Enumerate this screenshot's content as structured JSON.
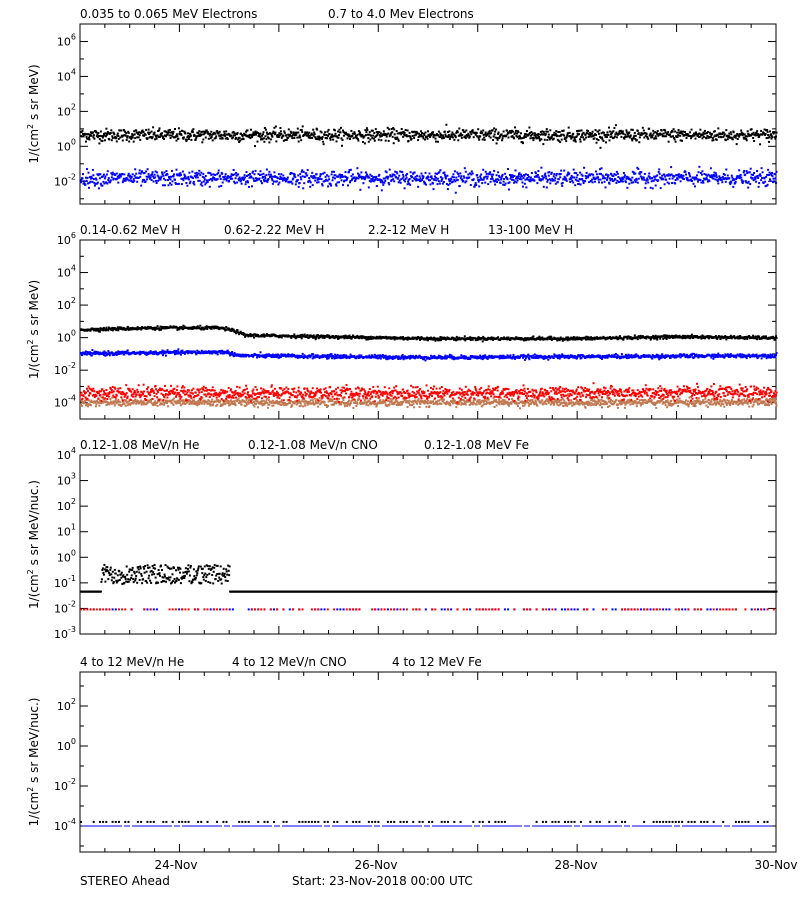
{
  "footer": {
    "spacecraft": "STEREO Ahead",
    "start": "Start: 23-Nov-2018 00:00 UTC"
  },
  "colors": {
    "black": "#000000",
    "blue": "#0000ff",
    "brown": "#c07850",
    "red": "#ff0000"
  },
  "chart_data": [
    {
      "type": "scatter",
      "ylabel_parts": [
        "1/(cm",
        "2",
        " s sr MeV)"
      ],
      "yscale": "log",
      "ylim_exp": [
        -3.3,
        7
      ],
      "yticks_exp": [
        -2,
        0,
        2,
        4,
        6
      ],
      "xlim": [
        "23-Nov-2018 00:00",
        "30-Nov-2018 00:00"
      ],
      "xticks": [
        "24-Nov",
        "26-Nov",
        "28-Nov",
        "30-Nov"
      ],
      "series": [
        {
          "name": "0.035 to 0.065 MeV Electrons",
          "color": "#000000",
          "level": 5,
          "spread": 0.18
        },
        {
          "name": "0.7 to 4.0 Mev Electrons",
          "color": "#0000ff",
          "level": 0.017,
          "spread": 0.22
        }
      ]
    },
    {
      "type": "scatter",
      "ylabel_parts": [
        "1/(cm",
        "2",
        " s sr MeV)"
      ],
      "yscale": "log",
      "ylim_exp": [
        -5,
        6
      ],
      "yticks_exp": [
        -4,
        -2,
        0,
        2,
        4,
        6
      ],
      "xlim": [
        "23-Nov-2018 00:00",
        "30-Nov-2018 00:00"
      ],
      "xticks": [
        "24-Nov",
        "26-Nov",
        "28-Nov",
        "30-Nov"
      ],
      "series": [
        {
          "name": "0.14-0.62 MeV H",
          "color": "#000000",
          "profile": [
            [
              0,
              3.5
            ],
            [
              0.7,
              4.5
            ],
            [
              1.4,
              4.5
            ],
            [
              1.55,
              3.0
            ],
            [
              1.65,
              1.6
            ],
            [
              2.5,
              1.3
            ],
            [
              3.5,
              1.0
            ],
            [
              5.0,
              1.0
            ],
            [
              6.0,
              1.3
            ],
            [
              7.0,
              1.1
            ]
          ],
          "spread": 0.05
        },
        {
          "name": "0.62-2.22 MeV H",
          "color": "#0000ff",
          "profile": [
            [
              0,
              0.12
            ],
            [
              1.45,
              0.15
            ],
            [
              1.6,
              0.09
            ],
            [
              3.5,
              0.07
            ],
            [
              7.0,
              0.09
            ]
          ],
          "spread": 0.06
        },
        {
          "name": "2.2-12 MeV H",
          "color": "#c07850",
          "level": 0.00012,
          "spread": 0.12
        },
        {
          "name": "13-100 MeV H",
          "color": "#ff0000",
          "level": 0.00045,
          "spread": 0.2
        }
      ]
    },
    {
      "type": "scatter",
      "ylabel_parts": [
        "1/(cm",
        "2",
        " s sr MeV/nuc.)"
      ],
      "yscale": "log",
      "ylim_exp": [
        -3,
        4
      ],
      "yticks_exp": [
        -3,
        -2,
        -1,
        0,
        1,
        2,
        3,
        4
      ],
      "xlim": [
        "23-Nov-2018 00:00",
        "30-Nov-2018 00:00"
      ],
      "xticks": [
        "24-Nov",
        "26-Nov",
        "28-Nov",
        "30-Nov"
      ],
      "series": [
        {
          "name": "0.12-1.08 MeV/n He",
          "color": "#000000",
          "level": 0.05,
          "spread": 0.0,
          "enhanced": [
            0.2,
            1.5,
            0.3
          ]
        },
        {
          "name": "0.12-1.08 MeV/n CNO",
          "color": "#0000ff",
          "level": 0.01,
          "spread": 0.0,
          "sparse": true
        },
        {
          "name": "0.12-1.08 MeV Fe",
          "color": "#ff0000",
          "level": 0.01,
          "spread": 0.0,
          "sparse": true
        }
      ]
    },
    {
      "type": "scatter",
      "ylabel_parts": [
        "1/(cm",
        "2",
        " s sr MeV/nuc.)"
      ],
      "yscale": "log",
      "ylim_exp": [
        -5.3,
        3.7
      ],
      "yticks_exp": [
        -4,
        -2,
        0,
        2
      ],
      "xlim": [
        "23-Nov-2018 00:00",
        "30-Nov-2018 00:00"
      ],
      "xticks": [
        "24-Nov",
        "26-Nov",
        "28-Nov",
        "30-Nov"
      ],
      "series": [
        {
          "name": "4 to 12 MeV/n He",
          "color": "#000000",
          "level": 0.00018,
          "spread": 0.0,
          "sparse": true
        },
        {
          "name": "4 to 12 MeV/n CNO",
          "color": "#0000ff",
          "level": 0.0001,
          "spread": 0.0,
          "line": true
        },
        {
          "name": "4 to 12 MeV Fe",
          "color": "#ff0000",
          "level": 0.0001,
          "spread": 0.0,
          "hidden": true
        }
      ]
    }
  ]
}
